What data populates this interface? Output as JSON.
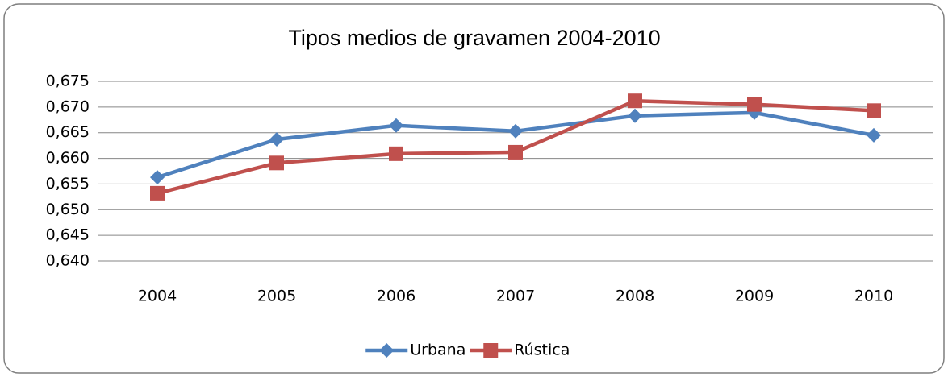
{
  "chart_data": {
    "type": "line",
    "title": "Tipos medios de gravamen 2004-2010",
    "categories": [
      "2004",
      "2005",
      "2006",
      "2007",
      "2008",
      "2009",
      "2010"
    ],
    "series": [
      {
        "name": "Urbana",
        "color": "#4f81bd",
        "marker": "diamond",
        "values": [
          0.6563,
          0.6637,
          0.6664,
          0.6653,
          0.6683,
          0.6689,
          0.6645
        ]
      },
      {
        "name": "Rústica",
        "color": "#c0504d",
        "marker": "square",
        "values": [
          0.6532,
          0.6591,
          0.6609,
          0.6612,
          0.6712,
          0.6705,
          0.6693
        ]
      }
    ],
    "ylim": [
      0.64,
      0.675
    ],
    "yticks": [
      {
        "value": 0.64,
        "label": "0,640"
      },
      {
        "value": 0.645,
        "label": "0,645"
      },
      {
        "value": 0.65,
        "label": "0,650"
      },
      {
        "value": 0.655,
        "label": "0,655"
      },
      {
        "value": 0.66,
        "label": "0,660"
      },
      {
        "value": 0.665,
        "label": "0,665"
      },
      {
        "value": 0.67,
        "label": "0,670"
      },
      {
        "value": 0.675,
        "label": "0,675"
      }
    ],
    "grid": true,
    "legend": "bottom"
  }
}
